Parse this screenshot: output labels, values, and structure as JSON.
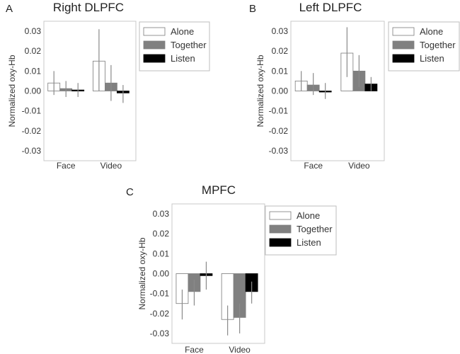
{
  "chart_data": [
    {
      "type": "bar",
      "panel": "A",
      "title": "Right DLPFC",
      "ylabel": "Normalized oxy-Hb",
      "xlabel": "",
      "categories": [
        "Face",
        "Video"
      ],
      "ylim": [
        -0.035,
        0.035
      ],
      "yticks": [
        "0.03",
        "0.02",
        "0.01",
        "0.00",
        "-0.01",
        "-0.02",
        "-0.03"
      ],
      "legend_position": "right",
      "series": [
        {
          "name": "Alone",
          "color": "#ffffff",
          "values": [
            0.004,
            0.015
          ],
          "err_low": [
            -0.002,
            0.0
          ],
          "err_high": [
            0.01,
            0.031
          ]
        },
        {
          "name": "Together",
          "color": "#808080",
          "values": [
            0.0012,
            0.004
          ],
          "err_low": [
            -0.003,
            -0.005
          ],
          "err_high": [
            0.005,
            0.013
          ]
        },
        {
          "name": "Listen",
          "color": "#000000",
          "values": [
            0.0005,
            -0.001
          ],
          "err_low": [
            -0.003,
            -0.006
          ],
          "err_high": [
            0.004,
            0.003
          ]
        }
      ]
    },
    {
      "type": "bar",
      "panel": "B",
      "title": "Left DLPFC",
      "ylabel": "Normalized oxy-Hb",
      "xlabel": "",
      "categories": [
        "Face",
        "Video"
      ],
      "ylim": [
        -0.035,
        0.035
      ],
      "yticks": [
        "0.03",
        "0.02",
        "0.01",
        "0.00",
        "-0.01",
        "-0.02",
        "-0.03"
      ],
      "legend_position": "right",
      "series": [
        {
          "name": "Alone",
          "color": "#ffffff",
          "values": [
            0.005,
            0.019
          ],
          "err_low": [
            0.0,
            0.007
          ],
          "err_high": [
            0.01,
            0.032
          ]
        },
        {
          "name": "Together",
          "color": "#808080",
          "values": [
            0.003,
            0.01
          ],
          "err_low": [
            -0.002,
            0.002
          ],
          "err_high": [
            0.009,
            0.018
          ]
        },
        {
          "name": "Listen",
          "color": "#000000",
          "values": [
            0.0,
            0.0035
          ],
          "err_low": [
            -0.004,
            0.0
          ],
          "err_high": [
            0.004,
            0.007
          ]
        }
      ]
    },
    {
      "type": "bar",
      "panel": "C",
      "title": "MPFC",
      "ylabel": "Normalized oxy-Hb",
      "xlabel": "",
      "categories": [
        "Face",
        "Video"
      ],
      "ylim": [
        -0.035,
        0.035
      ],
      "yticks": [
        "0.03",
        "0.02",
        "0.01",
        "0.00",
        "-0.01",
        "-0.02",
        "-0.03"
      ],
      "legend_position": "right",
      "series": [
        {
          "name": "Alone",
          "color": "#ffffff",
          "values": [
            -0.015,
            -0.023
          ],
          "err_low": [
            -0.023,
            -0.031
          ],
          "err_high": [
            -0.008,
            -0.016
          ]
        },
        {
          "name": "Together",
          "color": "#808080",
          "values": [
            -0.009,
            -0.022
          ],
          "err_low": [
            -0.016,
            -0.03
          ],
          "err_high": [
            -0.003,
            -0.015
          ]
        },
        {
          "name": "Listen",
          "color": "#000000",
          "values": [
            -0.001,
            -0.009
          ],
          "err_low": [
            -0.008,
            -0.015
          ],
          "err_high": [
            0.006,
            -0.004
          ]
        }
      ]
    }
  ]
}
